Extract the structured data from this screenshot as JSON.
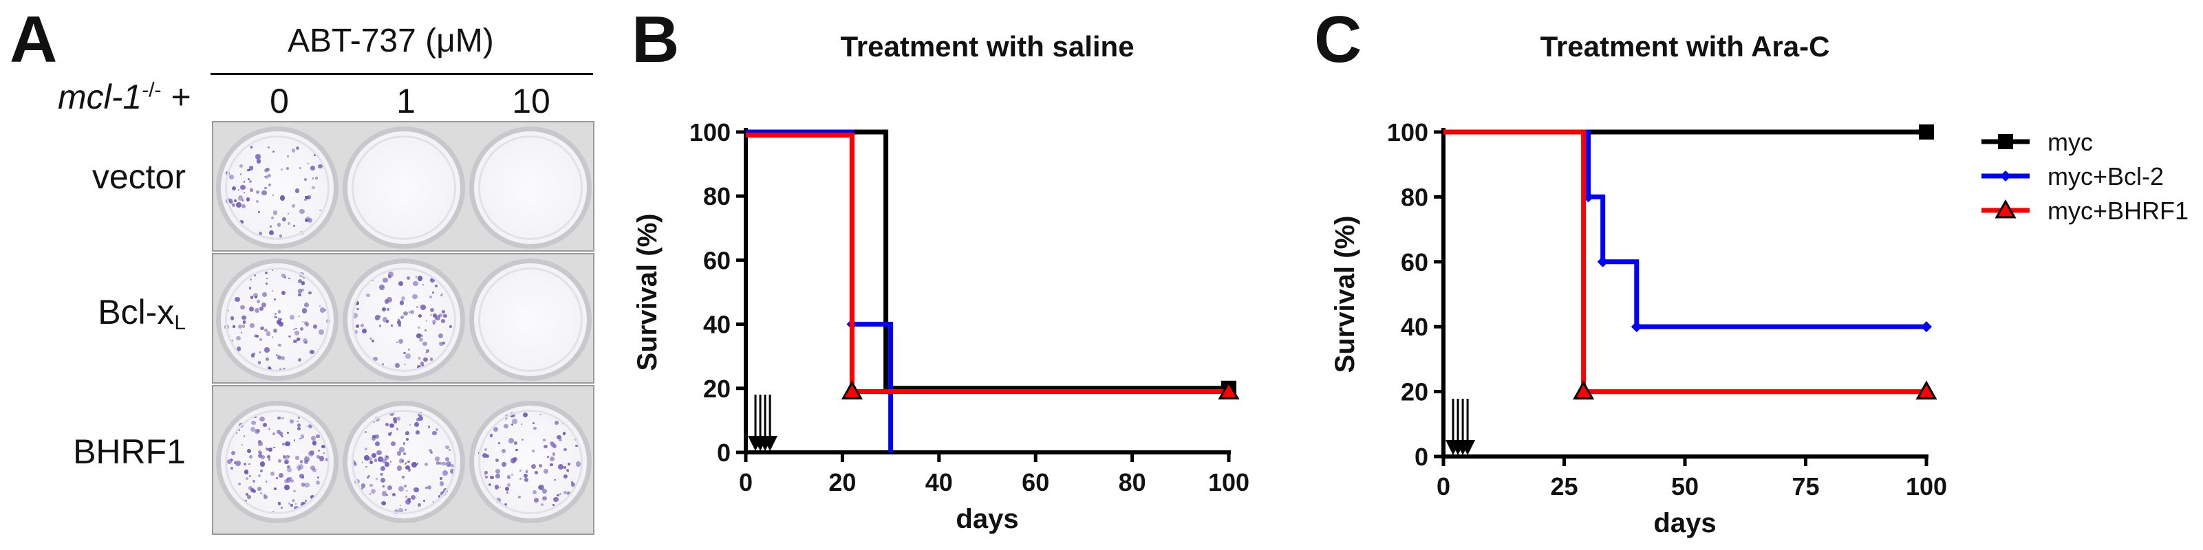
{
  "panel_letters": {
    "a": "A",
    "b": "B",
    "c": "C"
  },
  "panel_a": {
    "treatment_label_prefix": "ABT-737 (",
    "treatment_label_unit": "μM",
    "treatment_label_suffix": ")",
    "genotype_prefix": "mcl-1",
    "genotype_superscript": "-/-",
    "genotype_suffix": " +",
    "concentrations": [
      "0",
      "1",
      "10"
    ],
    "rows": [
      {
        "label": "vector",
        "subscript": "",
        "colony_density": [
          0.6,
          0.0,
          0.0
        ]
      },
      {
        "label": "Bcl-x",
        "subscript": "L",
        "colony_density": [
          0.75,
          0.65,
          0.0
        ]
      },
      {
        "label": "BHRF1",
        "subscript": "",
        "colony_density": [
          0.95,
          0.9,
          0.7
        ]
      }
    ],
    "colony_color": "#6d55b5"
  },
  "chart_data": [
    {
      "type": "line",
      "step": true,
      "title": "Treatment with saline",
      "xlabel": "days",
      "ylabel": "Survival (%)",
      "xlim": [
        0,
        100
      ],
      "ylim": [
        0,
        100
      ],
      "xticks": [
        0,
        20,
        40,
        60,
        80,
        100
      ],
      "yticks": [
        0,
        20,
        40,
        60,
        80,
        100
      ],
      "treatment_days": [
        2,
        3,
        4,
        5
      ],
      "series": [
        {
          "color": "#000000",
          "marker": "square",
          "x": [
            0,
            29,
            29,
            100
          ],
          "y": [
            100,
            100,
            20,
            20
          ]
        },
        {
          "color": "#0000ff",
          "marker": "diamond",
          "x": [
            0,
            22,
            22,
            30,
            30
          ],
          "y": [
            100,
            100,
            40,
            40,
            0
          ]
        },
        {
          "color": "#ff0000",
          "marker": "triangle",
          "x": [
            0,
            22,
            22,
            100
          ],
          "y": [
            99,
            99,
            19,
            19
          ]
        }
      ]
    },
    {
      "type": "line",
      "step": true,
      "title": "Treatment with Ara-C",
      "xlabel": "days",
      "ylabel": "Survival (%)",
      "xlim": [
        0,
        100
      ],
      "ylim": [
        0,
        100
      ],
      "xticks": [
        0,
        25,
        50,
        75,
        100
      ],
      "yticks": [
        0,
        20,
        40,
        60,
        80,
        100
      ],
      "treatment_days": [
        2,
        3,
        4,
        5
      ],
      "legend_position": "top-right",
      "series": [
        {
          "name": "myc",
          "color": "#000000",
          "marker": "square",
          "x": [
            0,
            100
          ],
          "y": [
            100,
            100
          ]
        },
        {
          "name": "myc+Bcl-2",
          "color": "#0000ff",
          "marker": "diamond",
          "x": [
            0,
            30,
            30,
            33,
            33,
            40,
            40,
            100
          ],
          "y": [
            100,
            100,
            80,
            80,
            60,
            60,
            40,
            40
          ]
        },
        {
          "name": "myc+BHRF1",
          "color": "#ff0000",
          "marker": "triangle",
          "x": [
            0,
            29,
            29,
            100
          ],
          "y": [
            100,
            100,
            20,
            20
          ]
        }
      ]
    }
  ]
}
